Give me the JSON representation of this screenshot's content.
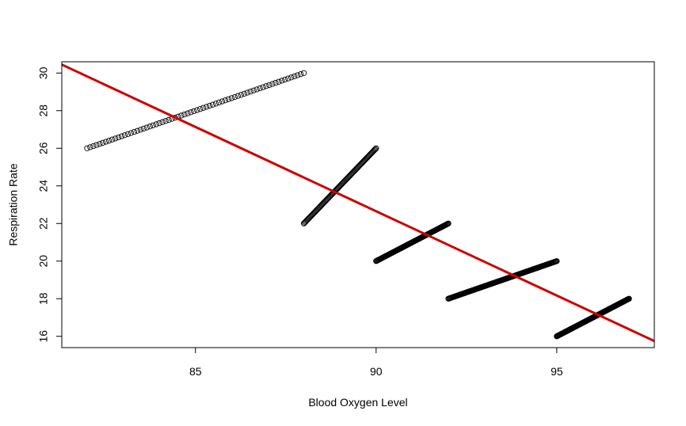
{
  "chart_data": {
    "type": "scatter",
    "title": "",
    "xlabel": "Blood Oxygen Level",
    "ylabel": "Respiration Rate",
    "xlim": [
      81.3,
      97.7
    ],
    "ylim": [
      15.4,
      30.6
    ],
    "x_ticks": [
      85,
      90,
      95
    ],
    "y_ticks": [
      16,
      18,
      20,
      22,
      24,
      26,
      28,
      30
    ],
    "grid": false,
    "legend": "none",
    "point_color": "#000000",
    "series": [
      {
        "segment": {
          "x_start": 82,
          "y_start": 26,
          "x_end": 88,
          "y_end": 30
        },
        "n_points": 70
      },
      {
        "segment": {
          "x_start": 88,
          "y_start": 22,
          "x_end": 90,
          "y_end": 26
        },
        "n_points": 90
      },
      {
        "segment": {
          "x_start": 90,
          "y_start": 20,
          "x_end": 92,
          "y_end": 22
        },
        "n_points": 110
      },
      {
        "segment": {
          "x_start": 92,
          "y_start": 18,
          "x_end": 95,
          "y_end": 20
        },
        "n_points": 150
      },
      {
        "segment": {
          "x_start": 95,
          "y_start": 16,
          "x_end": 97,
          "y_end": 18
        },
        "n_points": 150
      }
    ],
    "fit_line": {
      "color": "#cc0000",
      "x1": 81.3,
      "y1": 30.45,
      "x2": 97.7,
      "y2": 15.75
    }
  }
}
